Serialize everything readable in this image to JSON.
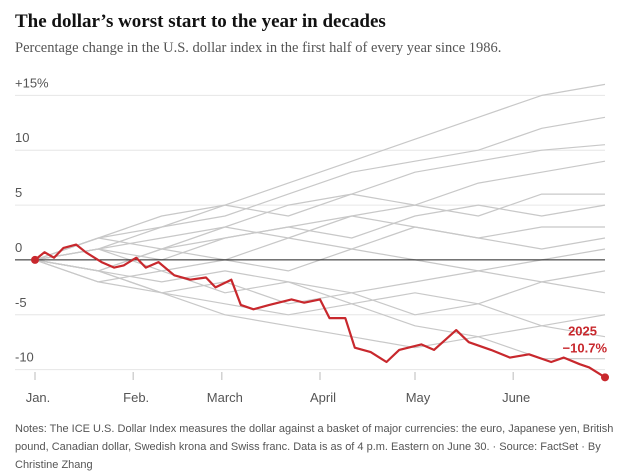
{
  "chart_data": {
    "type": "line",
    "title": "The dollar’s worst start to the year in decades",
    "subtitle": "Percentage change in the U.S. dollar index in the first half of every year since 1986.",
    "notes": "Notes: The ICE U.S. Dollar Index measures the dollar against a basket of major currencies: the euro, Japanese yen, British pound, Canadian dollar, Swedish krona and Swiss franc. Data is as of 4 p.m. Eastern on June 30. · Source: FactSet · By Christine Zhang",
    "xlim": [
      0,
      180
    ],
    "xticks": [
      {
        "value": 0,
        "label": "Jan."
      },
      {
        "value": 31,
        "label": "Feb."
      },
      {
        "value": 59,
        "label": "March"
      },
      {
        "value": 90,
        "label": "April"
      },
      {
        "value": 120,
        "label": "May"
      },
      {
        "value": 151,
        "label": "June"
      }
    ],
    "ylim": [
      -11.4,
      16.4
    ],
    "yticks": [
      {
        "value": 15,
        "label": "+15%"
      },
      10,
      5,
      0,
      -5,
      -10
    ],
    "grid": true,
    "background_series": [
      {
        "color": "#c8c8c8",
        "x": [
          0,
          20,
          40,
          60,
          80,
          100,
          120,
          140,
          160,
          180
        ],
        "values": [
          0,
          2,
          4,
          5,
          7,
          9,
          11,
          13,
          15,
          16
        ]
      },
      {
        "color": "#c8c8c8",
        "x": [
          0,
          20,
          40,
          60,
          80,
          100,
          120,
          140,
          160,
          180
        ],
        "values": [
          0,
          1,
          3,
          4,
          6,
          8,
          9,
          10,
          12,
          13
        ]
      },
      {
        "color": "#c8c8c8",
        "x": [
          0,
          20,
          40,
          60,
          80,
          100,
          120,
          140,
          160,
          180
        ],
        "values": [
          0,
          2,
          3,
          5,
          4,
          6,
          8,
          9,
          10,
          10.5
        ]
      },
      {
        "color": "#c8c8c8",
        "x": [
          0,
          20,
          40,
          60,
          80,
          100,
          120,
          140,
          160,
          180
        ],
        "values": [
          0,
          1,
          2,
          3,
          5,
          6,
          5,
          7,
          8,
          9
        ]
      },
      {
        "color": "#c8c8c8",
        "x": [
          0,
          20,
          40,
          60,
          80,
          100,
          120,
          140,
          160,
          180
        ],
        "values": [
          0,
          -1,
          1,
          2,
          3,
          4,
          5,
          4,
          6,
          6
        ]
      },
      {
        "color": "#c8c8c8",
        "x": [
          0,
          20,
          40,
          60,
          80,
          100,
          120,
          140,
          160,
          180
        ],
        "values": [
          0,
          1,
          0,
          2,
          3,
          2,
          4,
          5,
          4,
          5
        ]
      },
      {
        "color": "#c8c8c8",
        "x": [
          0,
          20,
          40,
          60,
          80,
          100,
          120,
          140,
          160,
          180
        ],
        "values": [
          0,
          2,
          1,
          3,
          2,
          4,
          3,
          2,
          3,
          3
        ]
      },
      {
        "color": "#c8c8c8",
        "x": [
          0,
          20,
          40,
          60,
          80,
          100,
          120,
          140,
          160,
          180
        ],
        "values": [
          0,
          -1,
          1,
          0,
          2,
          1,
          3,
          2,
          1,
          2
        ]
      },
      {
        "color": "#c8c8c8",
        "x": [
          0,
          20,
          40,
          60,
          80,
          100,
          120,
          140,
          160,
          180
        ],
        "values": [
          0,
          1,
          -1,
          0,
          -1,
          1,
          0,
          -1,
          0,
          1
        ]
      },
      {
        "color": "#c8c8c8",
        "x": [
          0,
          20,
          40,
          60,
          80,
          100,
          120,
          140,
          160,
          180
        ],
        "values": [
          0,
          -1,
          -2,
          -1,
          -2,
          -3,
          -2,
          -1,
          -2,
          -1
        ]
      },
      {
        "color": "#c8c8c8",
        "x": [
          0,
          20,
          40,
          60,
          80,
          100,
          120,
          140,
          160,
          180
        ],
        "values": [
          0,
          -2,
          -1,
          -3,
          -2,
          -4,
          -3,
          -4,
          -2,
          -3
        ]
      },
      {
        "color": "#c8c8c8",
        "x": [
          0,
          20,
          40,
          60,
          80,
          100,
          120,
          140,
          160,
          180
        ],
        "values": [
          0,
          -1,
          -3,
          -2,
          -4,
          -3,
          -5,
          -4,
          -6,
          -5
        ]
      },
      {
        "color": "#c8c8c8",
        "x": [
          0,
          20,
          40,
          60,
          80,
          100,
          120,
          140,
          160,
          180
        ],
        "values": [
          0,
          -2,
          -3,
          -4,
          -5,
          -4,
          -6,
          -7,
          -6,
          -7
        ]
      },
      {
        "color": "#c8c8c8",
        "x": [
          0,
          20,
          40,
          60,
          80,
          100,
          120,
          140,
          160,
          180
        ],
        "values": [
          0,
          -1,
          -3,
          -5,
          -6,
          -7,
          -8,
          -7,
          -9,
          -9
        ]
      }
    ],
    "series": [
      {
        "name": "2025",
        "color": "#c8282d",
        "x": [
          0,
          3,
          6,
          9,
          13,
          16,
          21,
          25,
          28,
          32,
          35,
          39,
          44,
          49,
          54,
          57,
          62,
          65,
          69,
          74,
          81,
          85,
          90,
          93,
          98,
          101,
          106,
          111,
          115,
          122,
          126,
          133,
          137,
          144,
          150,
          156,
          163,
          167,
          172,
          175,
          180
        ],
        "values": [
          0,
          0.7,
          0.2,
          1.1,
          1.4,
          0.7,
          -0.2,
          -0.7,
          -0.5,
          0.2,
          -0.7,
          -0.2,
          -1.4,
          -1.8,
          -1.6,
          -2.5,
          -1.8,
          -4.1,
          -4.5,
          -4.1,
          -3.6,
          -3.9,
          -3.6,
          -5.3,
          -5.3,
          -8.0,
          -8.4,
          -9.3,
          -8.2,
          -7.7,
          -8.2,
          -6.4,
          -7.5,
          -8.2,
          -8.9,
          -8.6,
          -9.3,
          -8.9,
          -9.5,
          -9.8,
          -10.7
        ],
        "value_labels": [
          null,
          null,
          null,
          null,
          null,
          null,
          null,
          null,
          null,
          null,
          null,
          null,
          null,
          null,
          null,
          null,
          null,
          null,
          null,
          null,
          null,
          null,
          null,
          null,
          null,
          null,
          null,
          null,
          null,
          null,
          null,
          null,
          null,
          null,
          null,
          null,
          null,
          null,
          null,
          null,
          "−10.7%"
        ]
      }
    ]
  }
}
